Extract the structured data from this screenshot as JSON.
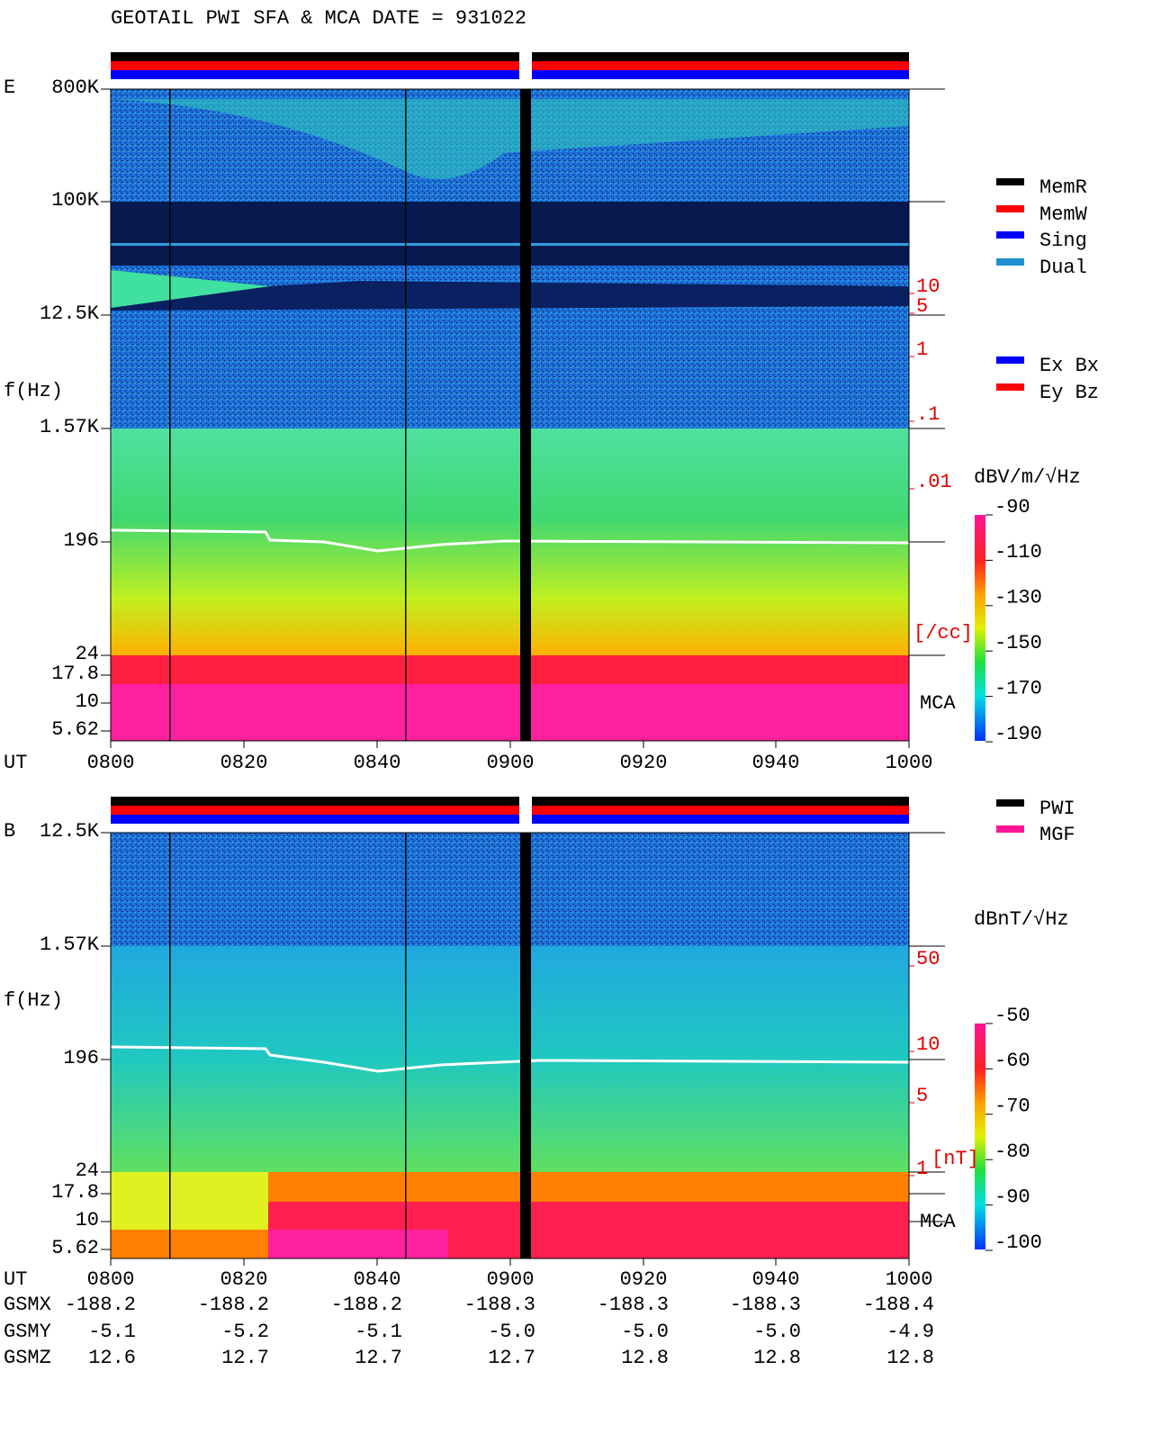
{
  "title": "GEOTAIL   PWI SFA & MCA   DATE = 931022",
  "panels": [
    {
      "label": "E",
      "y_label": "f(Hz)",
      "freq_ticks": [
        "800K",
        "100K",
        "12.5K",
        "1.57K",
        "196",
        "24",
        "17.8",
        "10",
        "5.62"
      ],
      "time_label": "UT",
      "time_ticks": [
        "0800",
        "0820",
        "0840",
        "0900",
        "0920",
        "0940",
        "1000"
      ],
      "scale_ticks": [
        "10",
        "5",
        "1",
        ".1",
        ".01"
      ],
      "scale_unit": "[/cc]",
      "mca_label": "MCA",
      "colorbar": {
        "unit": "dBV/m/√Hz",
        "ticks": [
          -90,
          -110,
          -130,
          -150,
          -170,
          -190
        ]
      }
    },
    {
      "label": "B",
      "y_label": "f(Hz)",
      "freq_ticks": [
        "12.5K",
        "1.57K",
        "196",
        "24",
        "17.8",
        "10",
        "5.62"
      ],
      "time_label": "UT",
      "time_ticks": [
        "0800",
        "0820",
        "0840",
        "0900",
        "0920",
        "0940",
        "1000"
      ],
      "scale_ticks": [
        "50",
        "10",
        "5",
        "1"
      ],
      "scale_unit": "[nT]",
      "mca_label": "MCA",
      "colorbar": {
        "unit": "dBnT/√Hz",
        "ticks": [
          -50,
          -60,
          -70,
          -80,
          -90,
          -100
        ]
      }
    }
  ],
  "legends": {
    "modes": [
      {
        "name": "MemR",
        "color": "#000000"
      },
      {
        "name": "MemW",
        "color": "#ff0000"
      },
      {
        "name": "Sing",
        "color": "#0000ff"
      },
      {
        "name": "Dual",
        "color": "#1e90d0"
      }
    ],
    "antennas": [
      {
        "name": "Ex Bx",
        "color": "#0000ff"
      },
      {
        "name": "Ey Bz",
        "color": "#ff0000"
      }
    ],
    "sources": [
      {
        "name": "PWI",
        "color": "#000000"
      },
      {
        "name": "MGF",
        "color": "#ff1493"
      }
    ]
  },
  "orbit": [
    {
      "label": "GSMX",
      "values": [
        "-188.2",
        "-188.2",
        "-188.2",
        "-188.3",
        "-188.3",
        "-188.3",
        "-188.4"
      ]
    },
    {
      "label": "GSMY",
      "values": [
        "-5.1",
        "-5.2",
        "-5.1",
        "-5.0",
        "-5.0",
        "-5.0",
        "-4.9"
      ]
    },
    {
      "label": "GSMZ",
      "values": [
        "12.6",
        "12.7",
        "12.7",
        "12.7",
        "12.8",
        "12.8",
        "12.8"
      ]
    }
  ]
}
